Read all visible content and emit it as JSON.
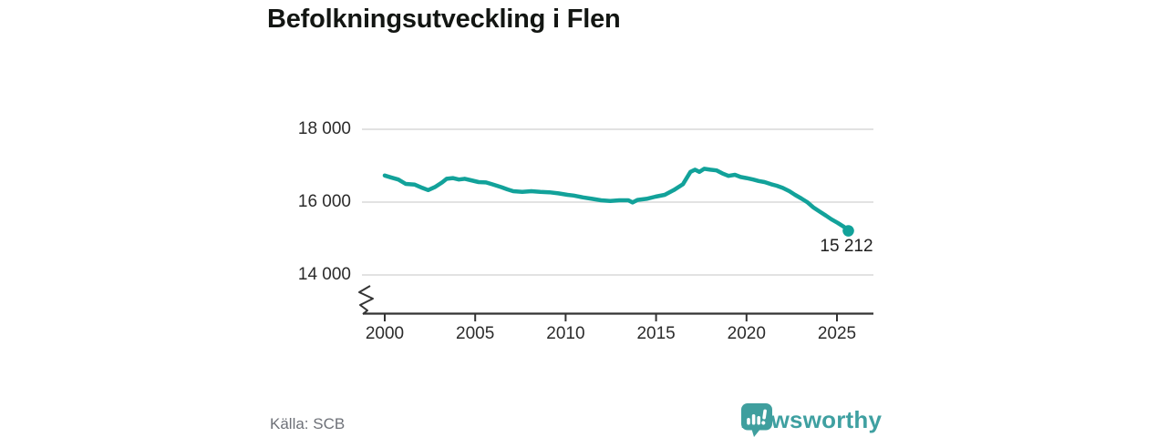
{
  "title": "Befolkningsutveckling i Flen",
  "source_label": "Källa: SCB",
  "branding": {
    "name": "Newsworthy",
    "icon": "bar-chart-speech-bubble-icon",
    "color": "#3f9f9e"
  },
  "colors": {
    "line": "#12a29a",
    "point": "#12a29a",
    "grid": "#d8d8d8",
    "axis": "#333333",
    "title_text": "#131613",
    "tick_text": "#2b2b2b",
    "source_text": "#6e7178"
  },
  "chart_data": {
    "type": "line",
    "title": "Befolkningsutveckling i Flen",
    "source": "SCB",
    "legend": "none",
    "grid": "horizontal-only",
    "axis_break_bottom_left": true,
    "x_ticks": [
      "2000",
      "2005",
      "2010",
      "2015",
      "2020",
      "2025"
    ],
    "x_tick_values": [
      2000,
      2005,
      2010,
      2015,
      2020,
      2025
    ],
    "y_ticks": [
      "18 000",
      "16 000",
      "14 000"
    ],
    "y_tick_values": [
      18000,
      16000,
      14000
    ],
    "xlim": [
      1998.7,
      2027
    ],
    "ylim": [
      13900,
      18300
    ],
    "last_point_label": "15 212",
    "last_value": 15212,
    "x": [
      2000.0,
      2000.33,
      2000.75,
      2001.16,
      2001.66,
      2002.08,
      2002.4,
      2002.76,
      2003.17,
      2003.42,
      2003.76,
      2004.1,
      2004.43,
      2004.77,
      2005.19,
      2005.6,
      2005.94,
      2006.45,
      2006.78,
      2007.1,
      2007.6,
      2008.1,
      2008.6,
      2009.1,
      2009.6,
      2010.1,
      2010.45,
      2010.96,
      2011.46,
      2011.96,
      2012.47,
      2012.97,
      2013.47,
      2013.7,
      2013.97,
      2014.47,
      2014.97,
      2015.48,
      2015.98,
      2016.48,
      2016.9,
      2017.15,
      2017.4,
      2017.66,
      2018.0,
      2018.35,
      2018.66,
      2019.0,
      2019.36,
      2019.67,
      2020.0,
      2020.37,
      2020.67,
      2021.0,
      2021.37,
      2021.67,
      2022.0,
      2022.37,
      2022.68,
      2023.03,
      2023.38,
      2023.68,
      2024.04,
      2024.39,
      2024.69,
      2025.04,
      2025.39,
      2025.63
    ],
    "values": [
      16730,
      16680,
      16620,
      16500,
      16480,
      16390,
      16330,
      16410,
      16540,
      16640,
      16660,
      16620,
      16640,
      16600,
      16550,
      16540,
      16490,
      16410,
      16350,
      16300,
      16280,
      16300,
      16280,
      16270,
      16240,
      16200,
      16180,
      16130,
      16090,
      16050,
      16030,
      16050,
      16050,
      15990,
      16060,
      16090,
      16150,
      16200,
      16330,
      16490,
      16830,
      16890,
      16830,
      16915,
      16890,
      16870,
      16790,
      16720,
      16750,
      16690,
      16660,
      16620,
      16580,
      16550,
      16490,
      16450,
      16390,
      16300,
      16200,
      16100,
      15990,
      15860,
      15740,
      15630,
      15530,
      15430,
      15320,
      15212
    ]
  }
}
